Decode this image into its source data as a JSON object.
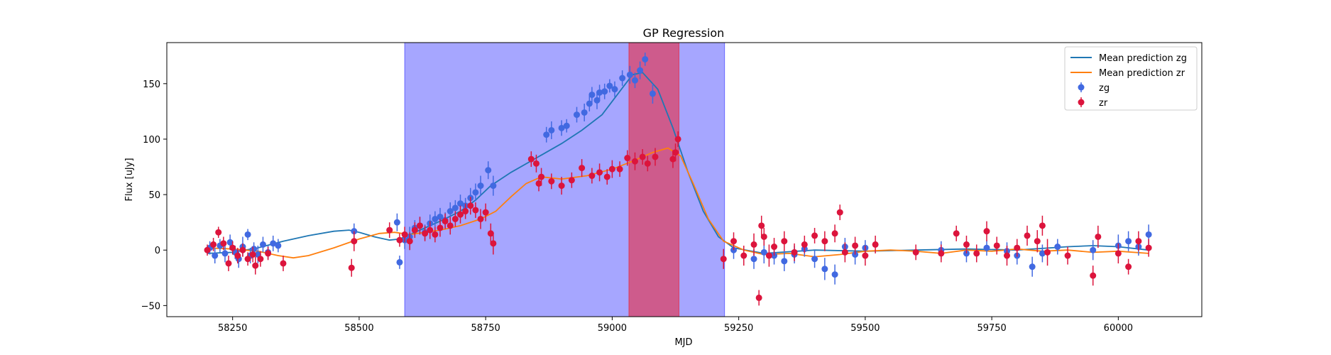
{
  "chart_data": {
    "type": "scatter",
    "title": "GP Regression",
    "xlabel": "MJD",
    "ylabel": "Flux [uJy]",
    "xlim": [
      58120,
      60165
    ],
    "ylim": [
      -60,
      187
    ],
    "x_ticks": [
      58250,
      58500,
      58750,
      59000,
      59250,
      59500,
      59750,
      60000
    ],
    "y_ticks": [
      -50,
      0,
      50,
      100,
      150
    ],
    "grid": false,
    "legend": "top-right",
    "shaded_regions": [
      {
        "x0": 58590,
        "x1": 59222,
        "color": "#0000ff",
        "opacity": 0.35
      },
      {
        "x0": 59033,
        "x1": 59132,
        "color": "#ff0000",
        "opacity": 0.45
      }
    ],
    "lines": [
      {
        "name": "Mean prediction zg",
        "color": "#1f77b4",
        "points": [
          [
            58200,
            -3
          ],
          [
            58250,
            -2
          ],
          [
            58300,
            2
          ],
          [
            58350,
            8
          ],
          [
            58400,
            13
          ],
          [
            58450,
            17
          ],
          [
            58480,
            18
          ],
          [
            58500,
            16
          ],
          [
            58530,
            12
          ],
          [
            58560,
            9
          ],
          [
            58580,
            10
          ],
          [
            58600,
            14
          ],
          [
            58630,
            20
          ],
          [
            58660,
            26
          ],
          [
            58700,
            35
          ],
          [
            58730,
            45
          ],
          [
            58760,
            58
          ],
          [
            58800,
            70
          ],
          [
            58850,
            83
          ],
          [
            58900,
            96
          ],
          [
            58940,
            108
          ],
          [
            58980,
            122
          ],
          [
            59010,
            140
          ],
          [
            59040,
            158
          ],
          [
            59060,
            160
          ],
          [
            59090,
            145
          ],
          [
            59120,
            110
          ],
          [
            59150,
            70
          ],
          [
            59180,
            35
          ],
          [
            59210,
            12
          ],
          [
            59240,
            2
          ],
          [
            59300,
            -3
          ],
          [
            59400,
            0
          ],
          [
            59500,
            -1
          ],
          [
            59600,
            0
          ],
          [
            59700,
            1
          ],
          [
            59800,
            0
          ],
          [
            59900,
            3
          ],
          [
            59950,
            4
          ],
          [
            60000,
            3
          ],
          [
            60060,
            0
          ]
        ]
      },
      {
        "name": "Mean prediction zr",
        "color": "#ff7f0e",
        "points": [
          [
            58200,
            2
          ],
          [
            58250,
            1
          ],
          [
            58300,
            -1
          ],
          [
            58340,
            -5
          ],
          [
            58370,
            -7
          ],
          [
            58400,
            -5
          ],
          [
            58450,
            2
          ],
          [
            58500,
            10
          ],
          [
            58540,
            15
          ],
          [
            58570,
            16
          ],
          [
            58600,
            14
          ],
          [
            58630,
            16
          ],
          [
            58660,
            18
          ],
          [
            58700,
            22
          ],
          [
            58740,
            28
          ],
          [
            58770,
            35
          ],
          [
            58800,
            48
          ],
          [
            58830,
            60
          ],
          [
            58860,
            66
          ],
          [
            58900,
            64
          ],
          [
            58950,
            67
          ],
          [
            59000,
            73
          ],
          [
            59040,
            80
          ],
          [
            59080,
            88
          ],
          [
            59110,
            92
          ],
          [
            59135,
            85
          ],
          [
            59160,
            60
          ],
          [
            59190,
            28
          ],
          [
            59220,
            8
          ],
          [
            59260,
            0
          ],
          [
            59300,
            -4
          ],
          [
            59350,
            -3
          ],
          [
            59400,
            -6
          ],
          [
            59450,
            -4
          ],
          [
            59500,
            -1
          ],
          [
            59550,
            0
          ],
          [
            59600,
            -1
          ],
          [
            59650,
            -3
          ],
          [
            59700,
            0
          ],
          [
            59750,
            -1
          ],
          [
            59800,
            1
          ],
          [
            59850,
            -1
          ],
          [
            59900,
            0
          ],
          [
            59950,
            -2
          ],
          [
            60000,
            -1
          ],
          [
            60060,
            -3
          ]
        ]
      }
    ],
    "series": [
      {
        "name": "zg",
        "color": "#4169e1",
        "points": [
          [
            58205,
            2,
            6
          ],
          [
            58215,
            -5,
            7
          ],
          [
            58225,
            4,
            6
          ],
          [
            58235,
            -3,
            8
          ],
          [
            58245,
            7,
            7
          ],
          [
            58255,
            -2,
            6
          ],
          [
            58262,
            -8,
            8
          ],
          [
            58270,
            3,
            9
          ],
          [
            58280,
            14,
            5
          ],
          [
            58285,
            -5,
            7
          ],
          [
            58292,
            1,
            6
          ],
          [
            58300,
            -4,
            8
          ],
          [
            58310,
            5,
            7
          ],
          [
            58320,
            -2,
            6
          ],
          [
            58330,
            6,
            7
          ],
          [
            58340,
            4,
            6
          ],
          [
            58490,
            17,
            7
          ],
          [
            58575,
            25,
            8
          ],
          [
            58580,
            -11,
            6
          ],
          [
            58590,
            9,
            8
          ],
          [
            58600,
            12,
            9
          ],
          [
            58610,
            20,
            7
          ],
          [
            58620,
            22,
            8
          ],
          [
            58630,
            16,
            7
          ],
          [
            58640,
            24,
            8
          ],
          [
            58650,
            28,
            7
          ],
          [
            58660,
            30,
            8
          ],
          [
            58670,
            27,
            7
          ],
          [
            58680,
            35,
            8
          ],
          [
            58690,
            38,
            7
          ],
          [
            58700,
            42,
            8
          ],
          [
            58710,
            40,
            7
          ],
          [
            58720,
            47,
            9
          ],
          [
            58730,
            52,
            8
          ],
          [
            58740,
            58,
            9
          ],
          [
            58755,
            72,
            8
          ],
          [
            58765,
            58,
            9
          ],
          [
            58870,
            104,
            7
          ],
          [
            58880,
            108,
            8
          ],
          [
            58900,
            110,
            7
          ],
          [
            58910,
            112,
            6
          ],
          [
            58930,
            122,
            7
          ],
          [
            58945,
            124,
            8
          ],
          [
            58955,
            132,
            7
          ],
          [
            58960,
            140,
            7
          ],
          [
            58970,
            135,
            8
          ],
          [
            58975,
            142,
            7
          ],
          [
            58985,
            143,
            7
          ],
          [
            58995,
            148,
            6
          ],
          [
            59005,
            145,
            7
          ],
          [
            59020,
            155,
            7
          ],
          [
            59035,
            158,
            8
          ],
          [
            59045,
            153,
            7
          ],
          [
            59055,
            162,
            8
          ],
          [
            59065,
            172,
            6
          ],
          [
            59080,
            141,
            9
          ],
          [
            59240,
            0,
            8
          ],
          [
            59280,
            -8,
            9
          ],
          [
            59300,
            -2,
            10
          ],
          [
            59320,
            -5,
            8
          ],
          [
            59340,
            -10,
            9
          ],
          [
            59360,
            -4,
            8
          ],
          [
            59380,
            1,
            7
          ],
          [
            59400,
            -8,
            8
          ],
          [
            59420,
            -17,
            10
          ],
          [
            59440,
            -22,
            9
          ],
          [
            59460,
            3,
            8
          ],
          [
            59480,
            -4,
            9
          ],
          [
            59500,
            2,
            7
          ],
          [
            59650,
            0,
            8
          ],
          [
            59700,
            -3,
            8
          ],
          [
            59740,
            2,
            7
          ],
          [
            59780,
            -1,
            8
          ],
          [
            59800,
            -5,
            8
          ],
          [
            59830,
            -15,
            9
          ],
          [
            59850,
            -3,
            8
          ],
          [
            59880,
            3,
            7
          ],
          [
            59950,
            0,
            9
          ],
          [
            60000,
            4,
            10
          ],
          [
            60020,
            8,
            9
          ],
          [
            60040,
            3,
            8
          ],
          [
            60060,
            14,
            9
          ]
        ]
      },
      {
        "name": "zr",
        "color": "#dc143c",
        "points": [
          [
            58200,
            0,
            5
          ],
          [
            58212,
            5,
            6
          ],
          [
            58222,
            16,
            5
          ],
          [
            58232,
            6,
            6
          ],
          [
            58242,
            -12,
            7
          ],
          [
            58250,
            2,
            6
          ],
          [
            58260,
            -5,
            7
          ],
          [
            58270,
            0,
            6
          ],
          [
            58280,
            -8,
            6
          ],
          [
            58290,
            -4,
            7
          ],
          [
            58295,
            -14,
            8
          ],
          [
            58305,
            -8,
            7
          ],
          [
            58320,
            -3,
            6
          ],
          [
            58350,
            -12,
            7
          ],
          [
            58485,
            -16,
            8
          ],
          [
            58490,
            8,
            9
          ],
          [
            58560,
            18,
            7
          ],
          [
            58580,
            9,
            6
          ],
          [
            58590,
            14,
            7
          ],
          [
            58600,
            8,
            8
          ],
          [
            58610,
            18,
            7
          ],
          [
            58620,
            22,
            8
          ],
          [
            58630,
            15,
            7
          ],
          [
            58640,
            18,
            8
          ],
          [
            58650,
            14,
            7
          ],
          [
            58660,
            20,
            8
          ],
          [
            58670,
            26,
            7
          ],
          [
            58680,
            22,
            8
          ],
          [
            58690,
            28,
            7
          ],
          [
            58700,
            32,
            8
          ],
          [
            58710,
            35,
            7
          ],
          [
            58720,
            40,
            8
          ],
          [
            58730,
            36,
            7
          ],
          [
            58740,
            28,
            9
          ],
          [
            58750,
            34,
            8
          ],
          [
            58760,
            15,
            9
          ],
          [
            58765,
            6,
            10
          ],
          [
            58840,
            82,
            7
          ],
          [
            58850,
            78,
            8
          ],
          [
            58855,
            60,
            7
          ],
          [
            58860,
            66,
            8
          ],
          [
            58880,
            62,
            7
          ],
          [
            58900,
            58,
            8
          ],
          [
            58920,
            63,
            7
          ],
          [
            58940,
            74,
            8
          ],
          [
            58960,
            67,
            7
          ],
          [
            58975,
            70,
            8
          ],
          [
            58990,
            66,
            7
          ],
          [
            59000,
            73,
            8
          ],
          [
            59015,
            73,
            7
          ],
          [
            59030,
            83,
            7
          ],
          [
            59045,
            80,
            8
          ],
          [
            59060,
            84,
            7
          ],
          [
            59070,
            78,
            7
          ],
          [
            59085,
            84,
            8
          ],
          [
            59120,
            82,
            8
          ],
          [
            59125,
            88,
            8
          ],
          [
            59130,
            100,
            7
          ],
          [
            59220,
            -8,
            9
          ],
          [
            59240,
            8,
            8
          ],
          [
            59260,
            -5,
            9
          ],
          [
            59280,
            5,
            10
          ],
          [
            59290,
            -43,
            7
          ],
          [
            59295,
            22,
            9
          ],
          [
            59300,
            12,
            8
          ],
          [
            59310,
            -5,
            10
          ],
          [
            59320,
            3,
            8
          ],
          [
            59340,
            8,
            9
          ],
          [
            59360,
            -2,
            8
          ],
          [
            59380,
            5,
            8
          ],
          [
            59400,
            13,
            7
          ],
          [
            59420,
            8,
            9
          ],
          [
            59440,
            15,
            8
          ],
          [
            59450,
            34,
            7
          ],
          [
            59460,
            -2,
            9
          ],
          [
            59480,
            4,
            8
          ],
          [
            59500,
            -5,
            9
          ],
          [
            59520,
            5,
            8
          ],
          [
            59600,
            -2,
            7
          ],
          [
            59650,
            -3,
            8
          ],
          [
            59680,
            15,
            7
          ],
          [
            59700,
            5,
            8
          ],
          [
            59720,
            -3,
            8
          ],
          [
            59740,
            17,
            9
          ],
          [
            59760,
            4,
            8
          ],
          [
            59780,
            -5,
            9
          ],
          [
            59800,
            2,
            8
          ],
          [
            59820,
            13,
            9
          ],
          [
            59840,
            8,
            10
          ],
          [
            59850,
            22,
            9
          ],
          [
            59860,
            -2,
            12
          ],
          [
            59900,
            -5,
            8
          ],
          [
            59950,
            -23,
            9
          ],
          [
            59960,
            12,
            10
          ],
          [
            60000,
            -3,
            9
          ],
          [
            60020,
            -15,
            7
          ],
          [
            60040,
            8,
            9
          ],
          [
            60060,
            2,
            8
          ]
        ]
      }
    ]
  }
}
